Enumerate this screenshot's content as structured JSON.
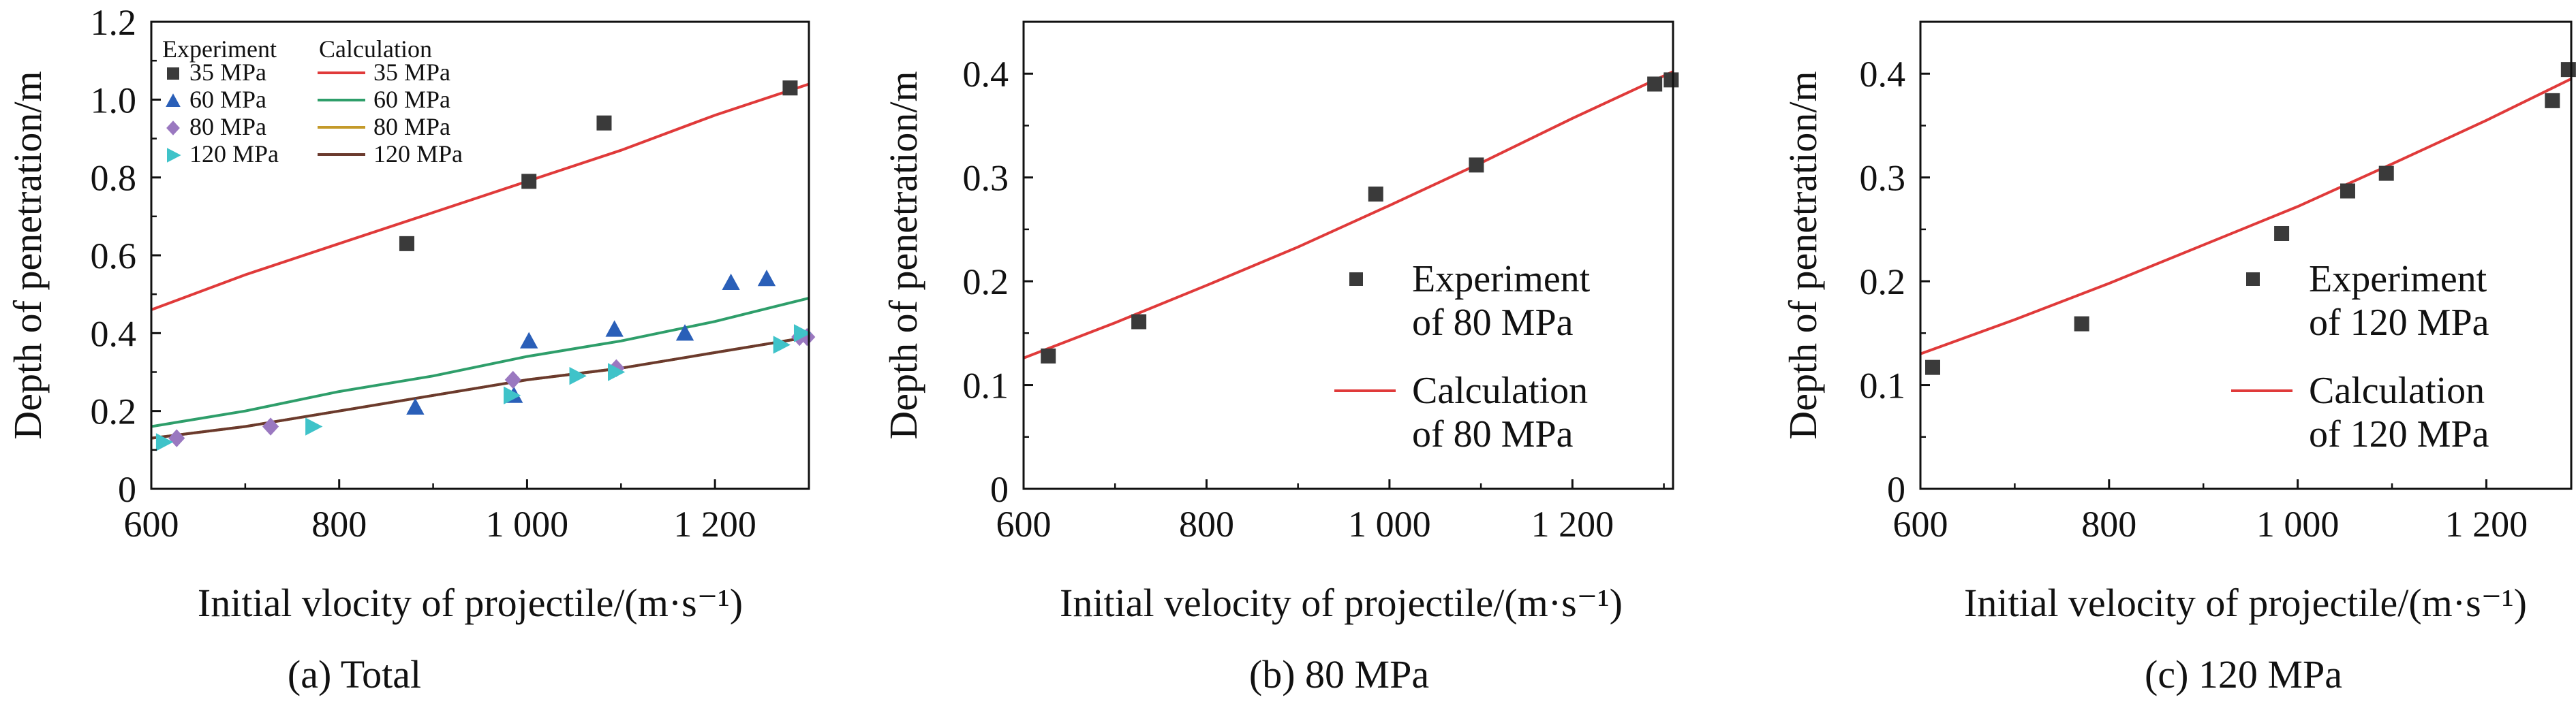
{
  "chart_data": [
    {
      "type": "scatter",
      "caption": "(a) Total",
      "xlabel": "Initial vlocity of projectile/(m·s⁻¹)",
      "ylabel": "Depth of penetration/m",
      "xlim": [
        600,
        1300
      ],
      "ylim": [
        0,
        1.2
      ],
      "xticks": [
        600,
        800,
        1000,
        1200
      ],
      "xtick_labels": [
        "600",
        "800",
        "1 000",
        "1 200"
      ],
      "yticks": [
        0,
        0.2,
        0.4,
        0.6,
        0.8,
        1.0,
        1.2
      ],
      "ytick_labels": [
        "0",
        "0.2",
        "0.4",
        "0.6",
        "0.8",
        "1.0",
        "1.2"
      ],
      "legend": {
        "placement": "top-left",
        "col_headers": [
          "Experiment",
          "Calculation"
        ]
      },
      "series": [
        {
          "name": "35 MPa",
          "kind": "experiment",
          "marker": "square",
          "color": "#3a3a3a",
          "x": [
            872,
            1002,
            1082,
            1280
          ],
          "y": [
            0.63,
            0.79,
            0.94,
            1.03
          ]
        },
        {
          "name": "60 MPa",
          "kind": "experiment",
          "marker": "triangle-up",
          "color": "#2a5fb8",
          "x": [
            881,
            986,
            1002,
            1093,
            1168,
            1217,
            1255
          ],
          "y": [
            0.21,
            0.24,
            0.38,
            0.41,
            0.4,
            0.53,
            0.54
          ]
        },
        {
          "name": "80 MPa",
          "kind": "experiment",
          "marker": "diamond",
          "color": "#9a78c0",
          "x": [
            627,
            727,
            985,
            1095,
            1290,
            1298
          ],
          "y": [
            0.13,
            0.16,
            0.28,
            0.31,
            0.39,
            0.39
          ]
        },
        {
          "name": "120 MPa",
          "kind": "experiment",
          "marker": "triangle-right",
          "color": "#3fc3c9",
          "x": [
            613,
            772,
            983,
            1053,
            1094,
            1270,
            1292
          ],
          "y": [
            0.12,
            0.16,
            0.24,
            0.29,
            0.3,
            0.37,
            0.4
          ]
        },
        {
          "name": "35 MPa",
          "kind": "calculation",
          "color": "#e03a3a",
          "x": [
            600,
            700,
            800,
            900,
            1000,
            1100,
            1200,
            1300
          ],
          "y": [
            0.46,
            0.55,
            0.63,
            0.71,
            0.79,
            0.87,
            0.96,
            1.04
          ]
        },
        {
          "name": "60 MPa",
          "kind": "calculation",
          "color": "#2e9e6a",
          "x": [
            600,
            700,
            800,
            900,
            1000,
            1100,
            1200,
            1300
          ],
          "y": [
            0.16,
            0.2,
            0.25,
            0.29,
            0.34,
            0.38,
            0.43,
            0.49
          ]
        },
        {
          "name": "80 MPa",
          "kind": "calculation",
          "color": "#c49a2a",
          "x": [
            600,
            700,
            800,
            900,
            1000,
            1100,
            1200,
            1300
          ],
          "y": [
            0.13,
            0.16,
            0.2,
            0.24,
            0.28,
            0.31,
            0.35,
            0.39
          ]
        },
        {
          "name": "120 MPa",
          "kind": "calculation",
          "color": "#6b3a2e",
          "x": [
            600,
            700,
            800,
            900,
            1000,
            1100,
            1200,
            1300
          ],
          "y": [
            0.13,
            0.16,
            0.2,
            0.24,
            0.28,
            0.31,
            0.35,
            0.39
          ]
        }
      ]
    },
    {
      "type": "scatter",
      "caption": "(b) 80 MPa",
      "xlabel": "Initial velocity of projectile/(m·s⁻¹)",
      "ylabel": "Depth of penetration/m",
      "xlim": [
        600,
        1310
      ],
      "ylim": [
        0,
        0.45
      ],
      "xticks": [
        600,
        800,
        1000,
        1200
      ],
      "xtick_labels": [
        "600",
        "800",
        "1 000",
        "1 200"
      ],
      "yticks": [
        0,
        0.1,
        0.2,
        0.3,
        0.4
      ],
      "ytick_labels": [
        "0",
        "0.1",
        "0.2",
        "0.3",
        "0.4"
      ],
      "legend": {
        "placement": "center-right"
      },
      "series": [
        {
          "name": "Experiment of 80 MPa",
          "kind": "experiment",
          "marker": "square",
          "color": "#3a3a3a",
          "x": [
            627,
            726,
            985,
            1095,
            1290,
            1308
          ],
          "y": [
            0.128,
            0.161,
            0.284,
            0.312,
            0.39,
            0.394
          ]
        },
        {
          "name": "Calculation of 80 MPa",
          "kind": "calculation",
          "color": "#e03a3a",
          "x": [
            600,
            700,
            800,
            900,
            1000,
            1100,
            1200,
            1310
          ],
          "y": [
            0.126,
            0.16,
            0.196,
            0.233,
            0.273,
            0.314,
            0.357,
            0.402
          ]
        }
      ]
    },
    {
      "type": "scatter",
      "caption": "(c) 120 MPa",
      "xlabel": "Initial velocity of projectile/(m·s⁻¹)",
      "ylabel": "Depth of penetration/m",
      "xlim": [
        600,
        1290
      ],
      "ylim": [
        0,
        0.45
      ],
      "xticks": [
        600,
        800,
        1000,
        1200
      ],
      "xtick_labels": [
        "600",
        "800",
        "1 000",
        "1 200"
      ],
      "yticks": [
        0,
        0.1,
        0.2,
        0.3,
        0.4
      ],
      "ytick_labels": [
        "0",
        "0.1",
        "0.2",
        "0.3",
        "0.4"
      ],
      "legend": {
        "placement": "center-right"
      },
      "series": [
        {
          "name": "Experiment of 120 MPa",
          "kind": "experiment",
          "marker": "square",
          "color": "#3a3a3a",
          "x": [
            613,
            771,
            983,
            1053,
            1094,
            1270,
            1287
          ],
          "y": [
            0.117,
            0.159,
            0.246,
            0.287,
            0.304,
            0.374,
            0.404
          ]
        },
        {
          "name": "Calculation of 120 MPa",
          "kind": "calculation",
          "color": "#e03a3a",
          "x": [
            600,
            700,
            800,
            900,
            1000,
            1100,
            1200,
            1290
          ],
          "y": [
            0.13,
            0.163,
            0.198,
            0.235,
            0.272,
            0.313,
            0.355,
            0.395
          ]
        }
      ]
    }
  ]
}
